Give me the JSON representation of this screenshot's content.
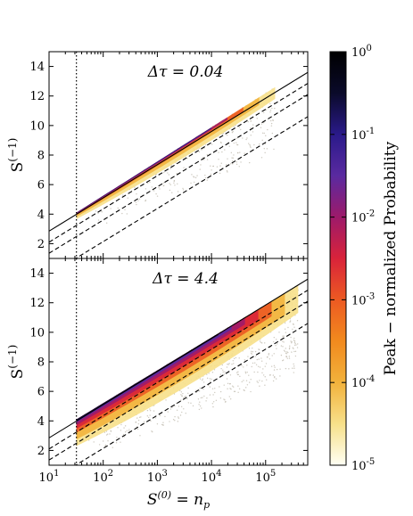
{
  "chart_data": {
    "type": "scatter",
    "xscale": "log",
    "xlim": [
      10,
      600000
    ],
    "xlabel": "S(0) = np",
    "x_tick_labels": [
      "10^1",
      "10^2",
      "10^3",
      "10^4",
      "10^5"
    ],
    "panels": [
      {
        "id": "top",
        "annotation": "Δτ = 0.04",
        "ylabel": "S(−1)",
        "ylim": [
          1,
          15
        ],
        "y_ticks": [
          2,
          4,
          6,
          8,
          10,
          12,
          14
        ],
        "cutoff_x": 32,
        "reference_lines": [
          {
            "style": "solid",
            "points": [
              [
                10,
                2.85
              ],
              [
                600000,
                13.6
              ]
            ]
          },
          {
            "style": "dashed",
            "points": [
              [
                10,
                2.1
              ],
              [
                600000,
                12.85
              ]
            ]
          },
          {
            "style": "dashed",
            "points": [
              [
                10,
                1.35
              ],
              [
                600000,
                12.1
              ]
            ]
          },
          {
            "style": "dashed",
            "points": [
              [
                10,
                -0.1
              ],
              [
                600000,
                10.6
              ]
            ]
          }
        ],
        "density_band": {
          "x": [
            32,
            150000
          ],
          "upper_y": [
            4.1,
            12.6
          ],
          "lower_y": [
            3.3,
            9.0
          ]
        }
      },
      {
        "id": "bottom",
        "annotation": "Δτ = 4.4",
        "ylabel": "S(−1)",
        "ylim": [
          1,
          15
        ],
        "y_ticks": [
          2,
          4,
          6,
          8,
          10,
          12,
          14
        ],
        "cutoff_x": 32,
        "reference_lines": [
          {
            "style": "solid",
            "points": [
              [
                10,
                2.85
              ],
              [
                600000,
                13.6
              ]
            ]
          },
          {
            "style": "dashed",
            "points": [
              [
                10,
                2.1
              ],
              [
                600000,
                12.85
              ]
            ]
          },
          {
            "style": "dashed",
            "points": [
              [
                10,
                1.35
              ],
              [
                600000,
                12.1
              ]
            ]
          },
          {
            "style": "dashed",
            "points": [
              [
                10,
                -0.1
              ],
              [
                600000,
                10.6
              ]
            ]
          }
        ],
        "density_band": {
          "x": [
            32,
            400000
          ],
          "upper_y": [
            4.1,
            13.2
          ],
          "lower_y": [
            2.3,
            8.5
          ]
        }
      }
    ],
    "colorbar": {
      "label": "Peak − normalized Probability",
      "scale": "log",
      "range": [
        1e-05,
        1
      ],
      "tick_labels": [
        "10^0",
        "10^-1",
        "10^-2",
        "10^-3",
        "10^-4",
        "10^-5"
      ],
      "colormap": [
        "#fffff4",
        "#f7e08a",
        "#f2b23c",
        "#f28a1e",
        "#ec5a22",
        "#d9233a",
        "#9d1a6a",
        "#5a2aa0",
        "#2a1a8a",
        "#0a0a2a",
        "#000000"
      ]
    }
  }
}
